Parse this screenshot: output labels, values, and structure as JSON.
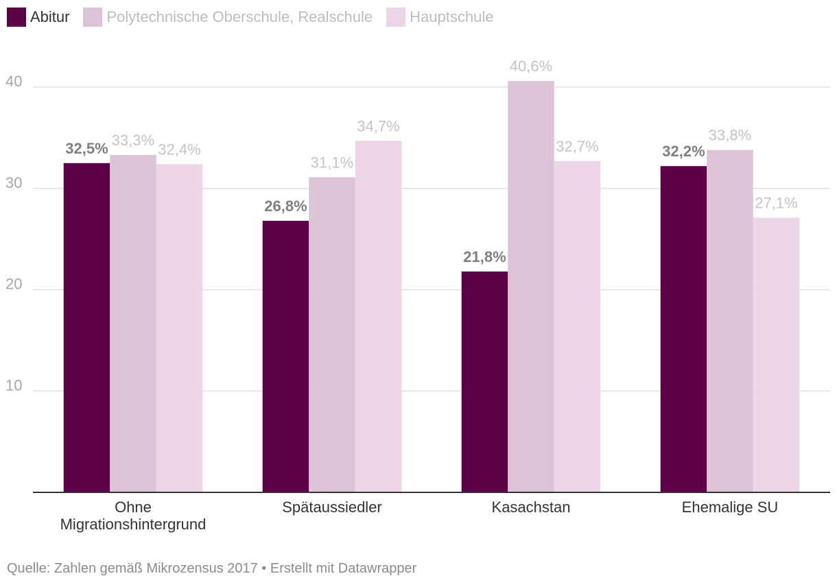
{
  "chart_data": {
    "type": "bar",
    "categories": [
      "Ohne\nMigrationshintergrund",
      "Spätaussiedler",
      "Kasachstan",
      "Ehemalige SU"
    ],
    "series": [
      {
        "name": "Abitur",
        "color": "#5e0048",
        "label_color": "#7f7f7f",
        "label_bold": true,
        "values": [
          32.5,
          26.8,
          21.8,
          32.2
        ],
        "labels": [
          "32,5%",
          "26,8%",
          "21,8%",
          "32,2%"
        ]
      },
      {
        "name": "Polytechnische Oberschule, Realschule",
        "color": "#dcc3d8",
        "label_color": "#c4c4c4",
        "label_bold": false,
        "values": [
          33.3,
          31.1,
          40.6,
          33.8
        ],
        "labels": [
          "33,3%",
          "31,1%",
          "40,6%",
          "33,8%"
        ]
      },
      {
        "name": "Hauptschule",
        "color": "#ecd5e7",
        "label_color": "#c4c4c4",
        "label_bold": false,
        "values": [
          32.4,
          34.7,
          32.7,
          27.1
        ],
        "labels": [
          "32,4%",
          "34,7%",
          "32,7%",
          "27,1%"
        ]
      }
    ],
    "y_ticks": [
      "10",
      "20",
      "30",
      "40"
    ],
    "ylim": [
      0,
      40
    ],
    "grid": true,
    "legend_position": "top-left"
  },
  "legend": {
    "items": [
      {
        "label": "Abitur",
        "color": "#5e0048",
        "text_color": "#333333"
      },
      {
        "label": "Polytechnische Oberschule, Realschule",
        "color": "#dcc3d8",
        "text_color": "#bdbdbd"
      },
      {
        "label": "Hauptschule",
        "color": "#ecd5e7",
        "text_color": "#bdbdbd"
      }
    ]
  },
  "footer": {
    "text": "Quelle: Zahlen gemäß Mikrozensus 2017 • Erstellt mit Datawrapper"
  }
}
